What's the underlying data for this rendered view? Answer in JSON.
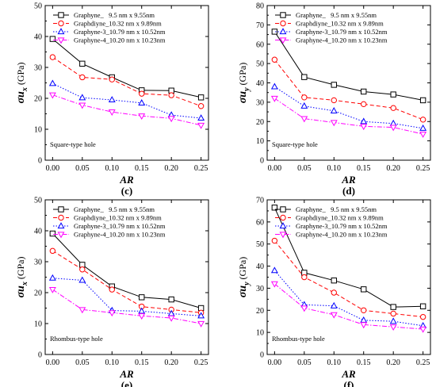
{
  "chart_data": [
    {
      "type": "line",
      "panel": "(c)",
      "note": "Square-type hole",
      "xlabel": "AR",
      "ylabel_main": "σu",
      "ylabel_sub": "x",
      "ylabel_unit": " (GPa)",
      "x": [
        0.0,
        0.05,
        0.1,
        0.15,
        0.2,
        0.25
      ],
      "xticks": [
        "0.00",
        "0.05",
        "0.10",
        "0.15",
        "0.20",
        "0.25"
      ],
      "ylim": [
        0,
        50
      ],
      "yticks": [
        0,
        10,
        20,
        30,
        40,
        50
      ],
      "series": [
        {
          "name": "Graphyne_   9.5 nm x 9.55nm",
          "values": [
            39.2,
            31.2,
            26.8,
            22.6,
            22.5,
            20.3
          ],
          "color": "#000000",
          "dash": "solid",
          "marker": "square"
        },
        {
          "name": "Graphdiyne_10.32 nm x 9.89nm",
          "values": [
            33.3,
            26.8,
            26.1,
            21.5,
            21.0,
            17.5
          ],
          "color": "#ff0000",
          "dash": "dash",
          "marker": "circle"
        },
        {
          "name": "Graphyne-3_10.79 nm x 10.52nm",
          "values": [
            24.8,
            20.2,
            19.5,
            18.5,
            14.6,
            13.6
          ],
          "color": "#0000ff",
          "dash": "dot",
          "marker": "triangle-up"
        },
        {
          "name": "Graphyne-4_10.20 nm x 10.23nm",
          "values": [
            21.1,
            17.8,
            15.6,
            14.3,
            13.5,
            11.3
          ],
          "color": "#ff00ff",
          "dash": "dashdot",
          "marker": "triangle-down"
        }
      ]
    },
    {
      "type": "line",
      "panel": "(d)",
      "note": "Square-type hole",
      "xlabel": "AR",
      "ylabel_main": "σu",
      "ylabel_sub": "y",
      "ylabel_unit": " (GPa)",
      "x": [
        0.0,
        0.05,
        0.1,
        0.15,
        0.2,
        0.25
      ],
      "xticks": [
        "0.00",
        "0.05",
        "0.10",
        "0.15",
        "0.20",
        "0.25"
      ],
      "ylim": [
        0,
        80
      ],
      "yticks": [
        0,
        10,
        20,
        30,
        40,
        50,
        60,
        70,
        80
      ],
      "series": [
        {
          "name": "Graphyne_   9.5 nm x 9.55nm",
          "values": [
            66.5,
            43.0,
            39.0,
            35.5,
            34.0,
            31.0
          ],
          "color": "#000000",
          "dash": "solid",
          "marker": "square"
        },
        {
          "name": "Graphdiyne_10.32 nm x 9.89nm",
          "values": [
            52.0,
            32.5,
            31.0,
            29.0,
            27.0,
            21.0
          ],
          "color": "#ff0000",
          "dash": "dash",
          "marker": "circle"
        },
        {
          "name": "Graphyne-3_10.79 nm x 10.52nm",
          "values": [
            38.0,
            28.0,
            25.5,
            20.0,
            19.0,
            16.5
          ],
          "color": "#0000ff",
          "dash": "dot",
          "marker": "triangle-up"
        },
        {
          "name": "Graphyne-4_10.20 nm x 10.23nm",
          "values": [
            32.0,
            21.5,
            19.5,
            17.5,
            17.0,
            13.5
          ],
          "color": "#ff00ff",
          "dash": "dashdot",
          "marker": "triangle-down"
        }
      ]
    },
    {
      "type": "line",
      "panel": "(e)",
      "note": "Rhombus-type hole",
      "xlabel": "AR",
      "ylabel_main": "σu",
      "ylabel_sub": "x",
      "ylabel_unit": " (GPa)",
      "x": [
        0.0,
        0.05,
        0.1,
        0.15,
        0.2,
        0.25
      ],
      "xticks": [
        "0.00",
        "0.05",
        "0.10",
        "0.15",
        "0.20",
        "0.25"
      ],
      "ylim": [
        0,
        50
      ],
      "yticks": [
        0,
        10,
        20,
        30,
        40,
        50
      ],
      "series": [
        {
          "name": "Graphyne_   9.5 nm x 9.55nm",
          "values": [
            39.1,
            29.0,
            22.0,
            18.5,
            17.8,
            15.0
          ],
          "color": "#000000",
          "dash": "solid",
          "marker": "square"
        },
        {
          "name": "Graphdiyne_10.32 nm x 9.89nm",
          "values": [
            33.5,
            27.5,
            21.0,
            15.5,
            14.5,
            13.5
          ],
          "color": "#ff0000",
          "dash": "dash",
          "marker": "circle"
        },
        {
          "name": "Graphyne-3_10.79 nm x 10.52nm",
          "values": [
            24.7,
            24.0,
            14.2,
            14.0,
            13.2,
            12.5
          ],
          "color": "#0000ff",
          "dash": "dot",
          "marker": "triangle-up"
        },
        {
          "name": "Graphyne-4_10.20 nm x 10.23nm",
          "values": [
            21.0,
            14.5,
            13.5,
            12.5,
            11.8,
            10.0
          ],
          "color": "#ff00ff",
          "dash": "dashdot",
          "marker": "triangle-down"
        }
      ]
    },
    {
      "type": "line",
      "panel": "(f)",
      "note": "Rhombus-type hole",
      "xlabel": "AR",
      "ylabel_main": "σu",
      "ylabel_sub": "y",
      "ylabel_unit": " (GPa)",
      "x": [
        0.0,
        0.05,
        0.1,
        0.15,
        0.2,
        0.25
      ],
      "xticks": [
        "0.00",
        "0.05",
        "0.10",
        "0.15",
        "0.20",
        "0.25"
      ],
      "ylim": [
        0,
        70
      ],
      "yticks": [
        0,
        10,
        20,
        30,
        40,
        50,
        60,
        70
      ],
      "series": [
        {
          "name": "Graphyne_   9.5 nm x 9.55nm",
          "values": [
            66.5,
            37.0,
            33.5,
            29.5,
            21.5,
            21.8
          ],
          "color": "#000000",
          "dash": "solid",
          "marker": "square"
        },
        {
          "name": "Graphdiyne_10.32 nm x 9.89nm",
          "values": [
            51.5,
            35.0,
            28.0,
            20.0,
            18.5,
            17.0
          ],
          "color": "#ff0000",
          "dash": "dash",
          "marker": "circle"
        },
        {
          "name": "Graphyne-3_10.79 nm x 10.52nm",
          "values": [
            38.0,
            22.5,
            22.0,
            15.5,
            15.0,
            13.0
          ],
          "color": "#0000ff",
          "dash": "dot",
          "marker": "triangle-up"
        },
        {
          "name": "Graphyne-4_10.20 nm x 10.23nm",
          "values": [
            32.0,
            21.0,
            18.0,
            13.5,
            12.5,
            11.5
          ],
          "color": "#ff00ff",
          "dash": "dashdot",
          "marker": "triangle-down"
        }
      ]
    }
  ]
}
